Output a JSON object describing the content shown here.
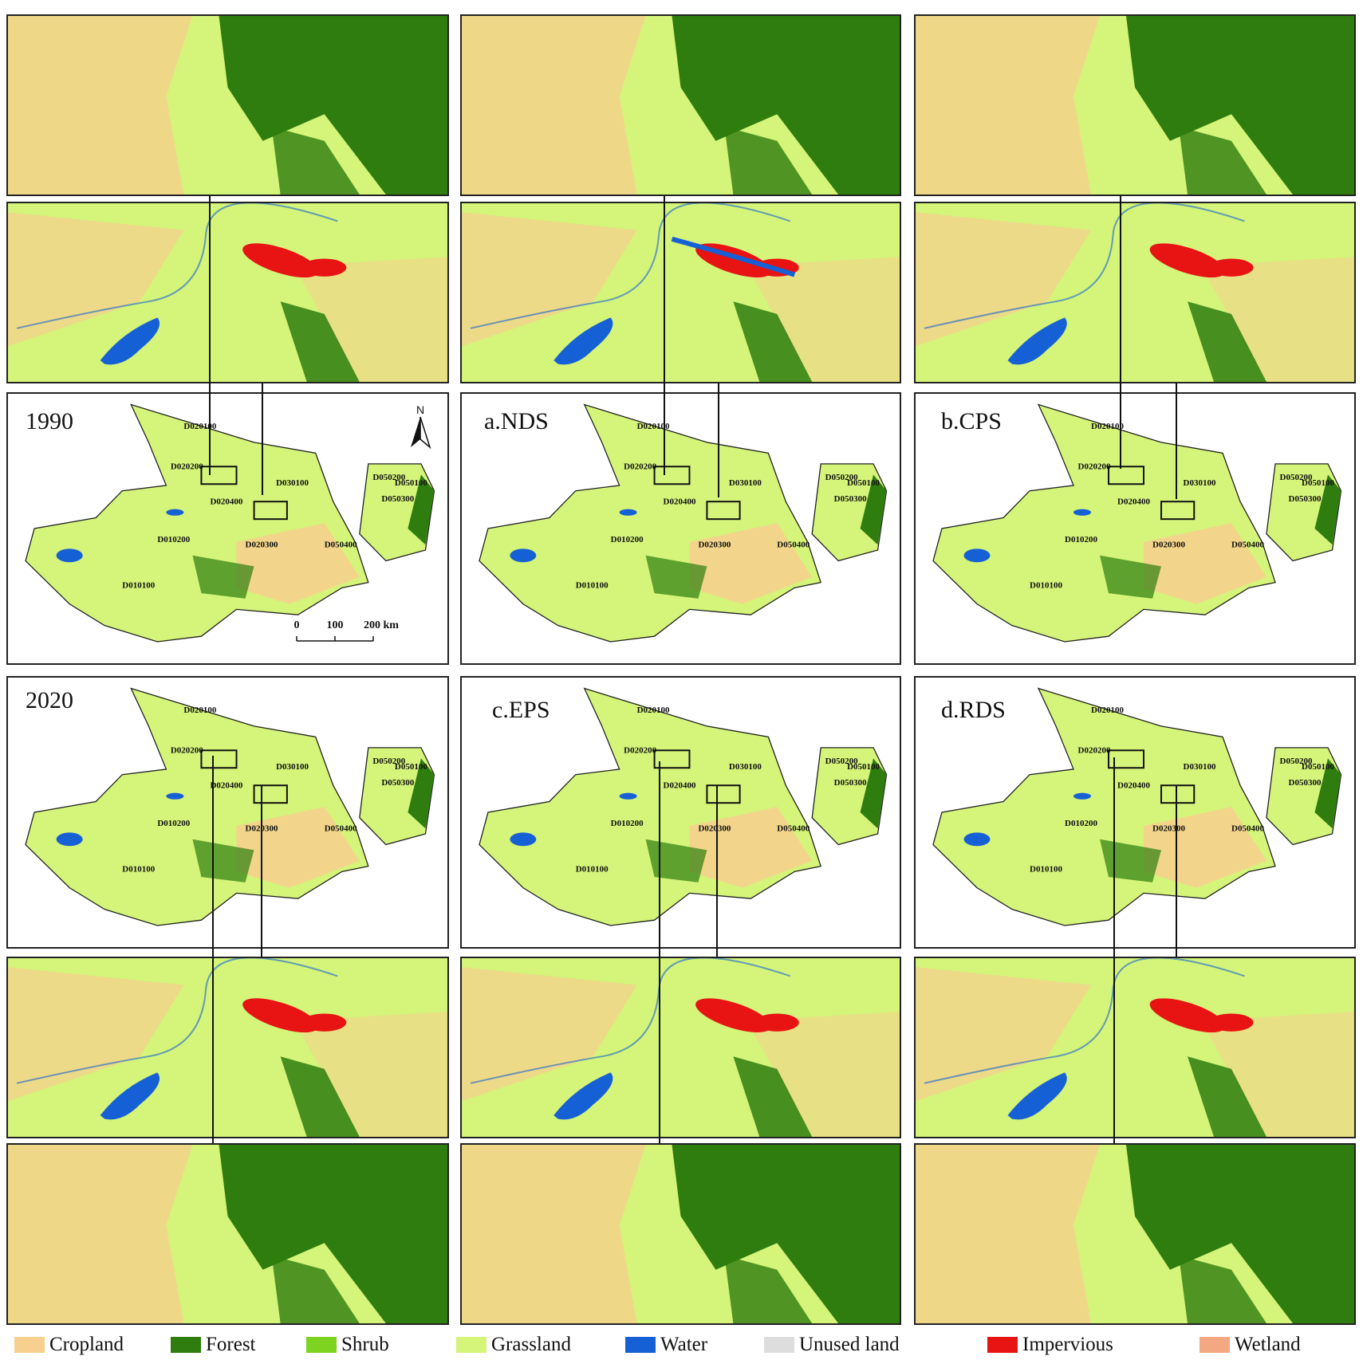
{
  "colors": {
    "cropland": "#f7cf8e",
    "forest": "#2e7d0e",
    "shrub": "#7ed321",
    "grassland": "#d4f47a",
    "water": "#1660d6",
    "unused": "#dddddd",
    "impervious": "#e81313",
    "wetland": "#f4a882"
  },
  "maps": {
    "1990": "1990",
    "nds": "a.NDS",
    "cps": "b.CPS",
    "y2020": "2020",
    "eps": "c.EPS",
    "rds": "d.RDS"
  },
  "regions": [
    "D020100",
    "D020200",
    "D030100",
    "D050200",
    "D050300",
    "D050100",
    "D020400",
    "D010200",
    "D020300",
    "D050400",
    "D010100"
  ],
  "scale": {
    "t0": "0",
    "t1": "100",
    "t2": "200 km"
  },
  "north": "N",
  "legend": [
    {
      "label": "Cropland",
      "color": "#f7cf8e"
    },
    {
      "label": "Forest",
      "color": "#2e7d0e"
    },
    {
      "label": "Shrub",
      "color": "#7ed321"
    },
    {
      "label": "Grassland",
      "color": "#d4f47a"
    },
    {
      "label": "Water",
      "color": "#1660d6"
    },
    {
      "label": "Unused land",
      "color": "#dddddd"
    },
    {
      "label": "Impervious",
      "color": "#e81313"
    },
    {
      "label": "Wetland",
      "color": "#f4a882"
    }
  ]
}
